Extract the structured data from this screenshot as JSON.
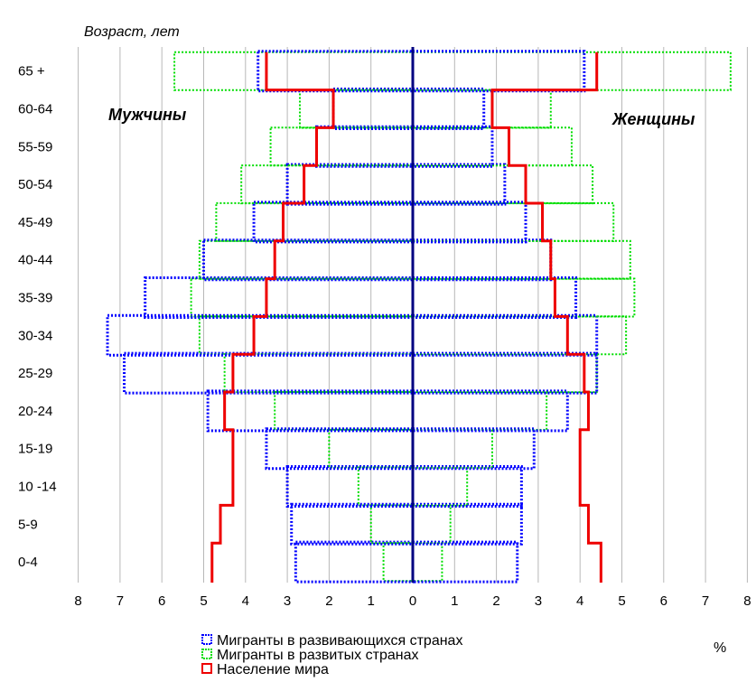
{
  "chart_data": {
    "type": "bar",
    "subtype": "population-pyramid",
    "title": "",
    "ylabel": "Возраст, лет",
    "unit_label": "%",
    "left_label": "Мужчины",
    "right_label": "Женщины",
    "xlim": [
      -8,
      8
    ],
    "x_ticks": [
      8,
      7,
      6,
      5,
      4,
      3,
      2,
      1,
      0,
      1,
      2,
      3,
      4,
      5,
      6,
      7,
      8
    ],
    "grid": true,
    "legend_position": "bottom",
    "categories": [
      "0-4",
      "5-9",
      "10 -14",
      "15-19",
      "20-24",
      "25-29",
      "30-34",
      "35-39",
      "40-44",
      "45-49",
      "50-54",
      "55-59",
      "60-64",
      "65 +"
    ],
    "series": [
      {
        "name": "Мигранты в развивающихся странах",
        "color": "#0000ff",
        "style": "dotted",
        "male": [
          2.8,
          2.9,
          3.0,
          3.5,
          4.9,
          6.9,
          7.3,
          6.4,
          5.0,
          3.8,
          3.0,
          2.3,
          1.9,
          3.7
        ],
        "female": [
          2.5,
          2.6,
          2.6,
          2.9,
          3.7,
          4.4,
          4.4,
          3.9,
          3.3,
          2.7,
          2.2,
          1.9,
          1.7,
          4.1
        ]
      },
      {
        "name": "Мигранты в развитых странах",
        "color": "#00dd00",
        "style": "dotted",
        "male": [
          0.7,
          1.0,
          1.3,
          2.0,
          3.3,
          4.5,
          5.1,
          5.3,
          5.1,
          4.7,
          4.1,
          3.4,
          2.7,
          5.7
        ],
        "female": [
          0.7,
          0.9,
          1.3,
          1.9,
          3.2,
          4.4,
          5.1,
          5.3,
          5.2,
          4.8,
          4.3,
          3.8,
          3.3,
          7.6
        ]
      },
      {
        "name": "Население мира",
        "color": "#ee0000",
        "style": "solid",
        "male": [
          4.8,
          4.6,
          4.3,
          4.3,
          4.5,
          4.3,
          3.8,
          3.5,
          3.3,
          3.1,
          2.6,
          2.3,
          1.9,
          3.5
        ],
        "female": [
          4.5,
          4.2,
          4.0,
          4.0,
          4.2,
          4.1,
          3.7,
          3.4,
          3.3,
          3.1,
          2.7,
          2.3,
          1.9,
          4.4
        ]
      }
    ]
  }
}
